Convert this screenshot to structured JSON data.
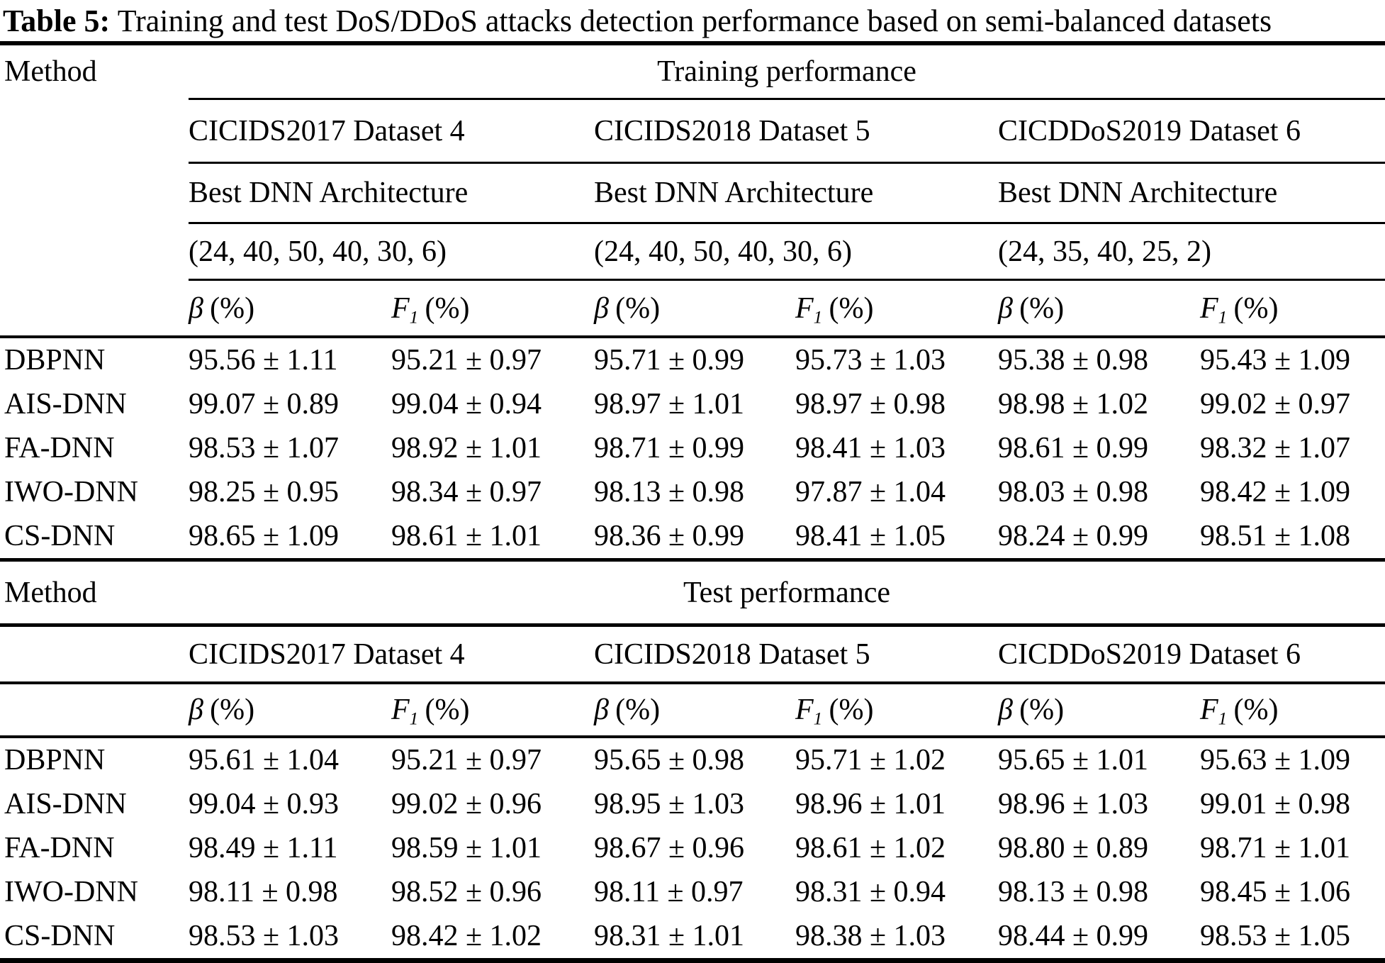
{
  "title": {
    "prefix": "Table 5:",
    "text": "Training and test DoS/DDoS attacks detection performance based on semi-balanced datasets"
  },
  "metrics": {
    "beta_sym": "β",
    "beta_unit": "(%)",
    "f1_sym": "F",
    "f1_sub": "1",
    "f1_unit": "(%)"
  },
  "sections": {
    "training": {
      "method_label": "Method",
      "title": "Training performance",
      "datasets": [
        "CICIDS2017 Dataset 4",
        "CICIDS2018 Dataset 5",
        "CICDDoS2019 Dataset 6"
      ],
      "arch_labels": [
        "Best DNN Architecture",
        "Best DNN Architecture",
        "Best DNN Architecture"
      ],
      "architectures": [
        "(24, 40, 50, 40, 30, 6)",
        "(24, 40, 50, 40, 30, 6)",
        "(24, 35, 40, 25, 2)"
      ],
      "rows": [
        {
          "method": "DBPNN",
          "v": [
            "95.56 ± 1.11",
            "95.21 ± 0.97",
            "95.71 ± 0.99",
            "95.73 ± 1.03",
            "95.38 ± 0.98",
            "95.43 ± 1.09"
          ]
        },
        {
          "method": "AIS-DNN",
          "v": [
            "99.07 ± 0.89",
            "99.04 ± 0.94",
            "98.97 ± 1.01",
            "98.97 ± 0.98",
            "98.98 ± 1.02",
            "99.02 ± 0.97"
          ]
        },
        {
          "method": "FA-DNN",
          "v": [
            "98.53 ± 1.07",
            "98.92 ± 1.01",
            "98.71 ± 0.99",
            "98.41 ± 1.03",
            "98.61 ± 0.99",
            "98.32 ± 1.07"
          ]
        },
        {
          "method": "IWO-DNN",
          "v": [
            "98.25 ± 0.95",
            "98.34 ± 0.97",
            "98.13 ± 0.98",
            "97.87 ± 1.04",
            "98.03 ± 0.98",
            "98.42 ± 1.09"
          ]
        },
        {
          "method": "CS-DNN",
          "v": [
            "98.65 ± 1.09",
            "98.61 ± 1.01",
            "98.36 ± 0.99",
            "98.41 ± 1.05",
            "98.24 ± 0.99",
            "98.51 ± 1.08"
          ]
        }
      ]
    },
    "test": {
      "method_label": "Method",
      "title": "Test performance",
      "datasets": [
        "CICIDS2017 Dataset 4",
        "CICIDS2018 Dataset 5",
        "CICDDoS2019 Dataset 6"
      ],
      "rows": [
        {
          "method": "DBPNN",
          "v": [
            "95.61 ± 1.04",
            "95.21 ± 0.97",
            "95.65 ± 0.98",
            "95.71 ± 1.02",
            "95.65 ± 1.01",
            "95.63 ± 1.09"
          ]
        },
        {
          "method": "AIS-DNN",
          "v": [
            "99.04 ± 0.93",
            "99.02 ± 0.96",
            "98.95 ± 1.03",
            "98.96 ± 1.01",
            "98.96 ± 1.03",
            "99.01 ± 0.98"
          ]
        },
        {
          "method": "FA-DNN",
          "v": [
            "98.49 ± 1.11",
            "98.59 ± 1.01",
            "98.67 ± 0.96",
            "98.61 ± 1.02",
            "98.80 ± 0.89",
            "98.71 ± 1.01"
          ]
        },
        {
          "method": "IWO-DNN",
          "v": [
            "98.11 ± 0.98",
            "98.52 ± 0.96",
            "98.11 ± 0.97",
            "98.31 ± 0.94",
            "98.13 ± 0.98",
            "98.45 ± 1.06"
          ]
        },
        {
          "method": "CS-DNN",
          "v": [
            "98.53 ± 1.03",
            "98.42 ± 1.02",
            "98.31 ± 1.01",
            "98.38 ± 1.03",
            "98.44 ± 0.99",
            "98.53 ± 1.05"
          ]
        }
      ]
    }
  }
}
